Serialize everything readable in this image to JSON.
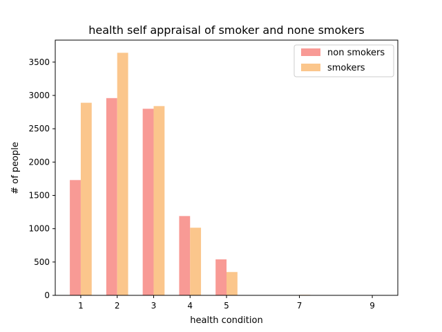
{
  "chart_data": {
    "type": "bar",
    "title": "health self appraisal of smoker and none smokers",
    "xlabel": "health condition",
    "ylabel": "# of people",
    "x": [
      1,
      2,
      3,
      4,
      5,
      7,
      9
    ],
    "x_ticks": [
      "1",
      "2",
      "3",
      "4",
      "5",
      "7",
      "9"
    ],
    "xlim": [
      0.3,
      9.7
    ],
    "ylim": [
      0,
      3830
    ],
    "y_ticks": [
      0,
      500,
      1000,
      1500,
      2000,
      2500,
      3000,
      3500
    ],
    "bar_width": 0.3,
    "grid": false,
    "legend_position": "top-right",
    "series": [
      {
        "name": "non smokers",
        "color": "#f89a95",
        "values": [
          1730,
          2960,
          2800,
          1190,
          540,
          5,
          0
        ]
      },
      {
        "name": "smokers",
        "color": "#fbc68c",
        "values": [
          2890,
          3640,
          2840,
          1015,
          350,
          8,
          0
        ]
      }
    ]
  }
}
